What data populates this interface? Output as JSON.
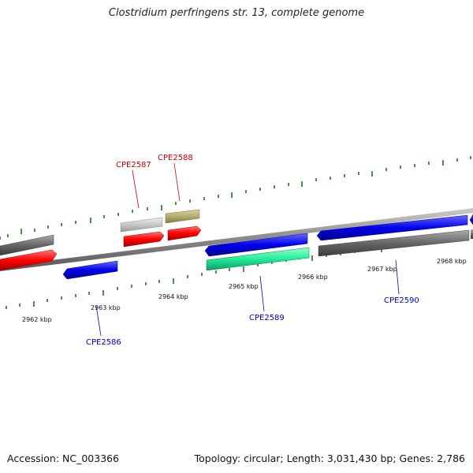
{
  "title": "Clostridium perfringens str. 13, complete genome",
  "footer": {
    "accession": "Accession: NC_003366",
    "summary": "Topology: circular; Length: 3,031,430 bp; Genes: 2,786"
  },
  "ticks": [
    {
      "label": "2962 kbp"
    },
    {
      "label": "2963 kbp"
    },
    {
      "label": "2964 kbp"
    },
    {
      "label": "2965 kbp"
    },
    {
      "label": "2966 kbp"
    },
    {
      "label": "2967 kbp"
    },
    {
      "label": "2968 kbp"
    }
  ],
  "gene_labels": [
    {
      "label": "CPE2587",
      "color": "#cc0000"
    },
    {
      "label": "CPE2588",
      "color": "#cc0000"
    },
    {
      "label": "CPE2586",
      "color": "#0000cc"
    },
    {
      "label": "CPE2589",
      "color": "#0000cc"
    },
    {
      "label": "CPE2590",
      "color": "#0000cc"
    }
  ],
  "colors": {
    "backbone": "#888888",
    "tick_marks": "#1a7a1a",
    "forward_gene": "#ff0000",
    "reverse_gene": "#0000ee",
    "gray_gene": "#666666",
    "light_gray_gene": "#c8c8c8",
    "olive_gene": "#b3ad6e",
    "teal_gene": "#22ee99"
  }
}
